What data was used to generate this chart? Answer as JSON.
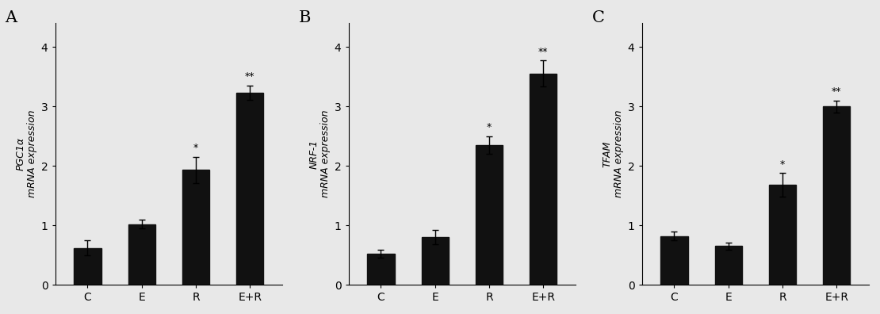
{
  "panels": [
    {
      "label": "A",
      "ylabel_top": "PGC1α",
      "ylabel_bottom": "mRNA expression",
      "categories": [
        "C",
        "E",
        "R",
        "E+R"
      ],
      "values": [
        0.62,
        1.02,
        1.93,
        3.23
      ],
      "errors": [
        0.13,
        0.07,
        0.22,
        0.12
      ],
      "annotations": [
        "",
        "",
        "*",
        "**"
      ],
      "ylim": [
        0,
        4.4
      ],
      "yticks": [
        0,
        1,
        2,
        3,
        4
      ]
    },
    {
      "label": "B",
      "ylabel_top": "NRF-1",
      "ylabel_bottom": "mRNA expression",
      "categories": [
        "C",
        "E",
        "R",
        "E+R"
      ],
      "values": [
        0.52,
        0.8,
        2.35,
        3.55
      ],
      "errors": [
        0.07,
        0.12,
        0.15,
        0.22
      ],
      "annotations": [
        "",
        "",
        "*",
        "**"
      ],
      "ylim": [
        0,
        4.4
      ],
      "yticks": [
        0,
        1,
        2,
        3,
        4
      ]
    },
    {
      "label": "C",
      "ylabel_top": "TFAM",
      "ylabel_bottom": "mRNA expression",
      "categories": [
        "C",
        "E",
        "R",
        "E+R"
      ],
      "values": [
        0.82,
        0.65,
        1.68,
        3.0
      ],
      "errors": [
        0.07,
        0.06,
        0.2,
        0.1
      ],
      "annotations": [
        "",
        "",
        "*",
        "**"
      ],
      "ylim": [
        0,
        4.4
      ],
      "yticks": [
        0,
        1,
        2,
        3,
        4
      ]
    }
  ],
  "bar_color": "#111111",
  "bar_edge_color": "#111111",
  "background_color": "#e8e8e8",
  "fig_width": 11.1,
  "fig_height": 3.96,
  "dpi": 100
}
